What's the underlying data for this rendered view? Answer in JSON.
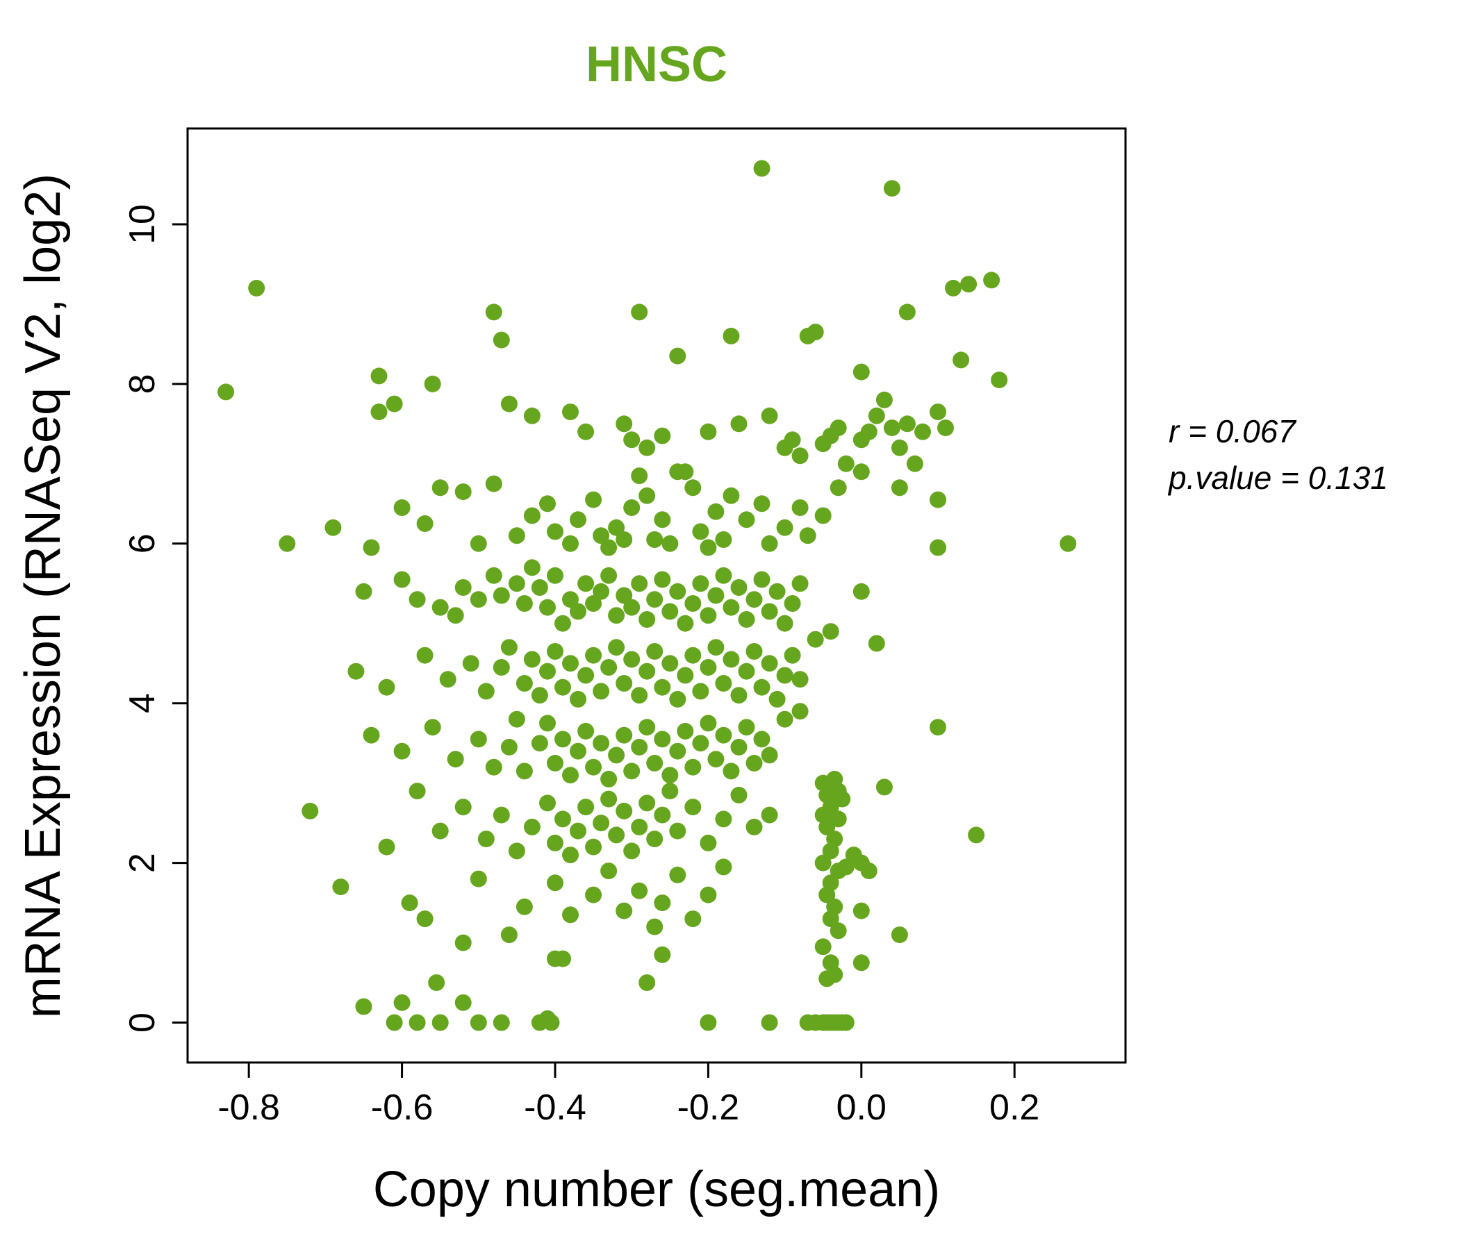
{
  "page": {
    "background_color": "#ffffff"
  },
  "annotation": {
    "line1": "r = 0.067",
    "line2": "p.value = 0.131"
  },
  "chart_data": {
    "type": "scatter",
    "title": "HNSC",
    "title_color": "#66a61e",
    "point_color": "#66a61e",
    "xlabel": "Copy number (seg.mean)",
    "ylabel": "mRNA Expression (RNASeq V2, log2)",
    "xlim": [
      -0.88,
      0.345
    ],
    "ylim": [
      -0.5,
      11.2
    ],
    "xticks": [
      -0.8,
      -0.6,
      -0.4,
      -0.2,
      0.0,
      0.2
    ],
    "xtick_labels": [
      "-0.8",
      "-0.6",
      "-0.4",
      "-0.2",
      "0.0",
      "0.2"
    ],
    "yticks": [
      0,
      2,
      4,
      6,
      8,
      10
    ],
    "ytick_labels": [
      "0",
      "2",
      "4",
      "6",
      "8",
      "10"
    ],
    "legend": null,
    "grid": false,
    "stats": {
      "r": 0.067,
      "p_value": 0.131
    },
    "points": [
      [
        -0.13,
        10.7
      ],
      [
        0.04,
        10.45
      ],
      [
        -0.79,
        9.2
      ],
      [
        0.14,
        9.25
      ],
      [
        0.17,
        9.3
      ],
      [
        0.12,
        9.2
      ],
      [
        0.06,
        8.9
      ],
      [
        -0.48,
        8.9
      ],
      [
        -0.47,
        8.55
      ],
      [
        -0.29,
        8.9
      ],
      [
        -0.24,
        8.35
      ],
      [
        -0.17,
        8.6
      ],
      [
        -0.07,
        8.6
      ],
      [
        -0.06,
        8.65
      ],
      [
        0.0,
        8.15
      ],
      [
        0.13,
        8.3
      ],
      [
        0.18,
        8.05
      ],
      [
        -0.63,
        8.1
      ],
      [
        -0.83,
        7.9
      ],
      [
        -0.63,
        7.65
      ],
      [
        -0.61,
        7.75
      ],
      [
        -0.56,
        8.0
      ],
      [
        -0.46,
        7.75
      ],
      [
        -0.43,
        7.6
      ],
      [
        -0.38,
        7.65
      ],
      [
        -0.36,
        7.4
      ],
      [
        -0.31,
        7.5
      ],
      [
        -0.3,
        7.3
      ],
      [
        -0.28,
        7.2
      ],
      [
        -0.26,
        7.35
      ],
      [
        -0.24,
        6.9
      ],
      [
        -0.2,
        7.4
      ],
      [
        -0.16,
        7.5
      ],
      [
        -0.12,
        7.6
      ],
      [
        -0.1,
        7.2
      ],
      [
        -0.09,
        7.3
      ],
      [
        -0.08,
        7.1
      ],
      [
        -0.05,
        7.25
      ],
      [
        -0.04,
        7.35
      ],
      [
        -0.03,
        7.45
      ],
      [
        -0.02,
        7.0
      ],
      [
        0.0,
        7.3
      ],
      [
        0.01,
        7.4
      ],
      [
        0.02,
        7.6
      ],
      [
        0.03,
        7.8
      ],
      [
        0.04,
        7.45
      ],
      [
        0.05,
        7.2
      ],
      [
        0.06,
        7.5
      ],
      [
        0.07,
        7.0
      ],
      [
        0.08,
        7.4
      ],
      [
        0.1,
        7.65
      ],
      [
        0.11,
        7.45
      ],
      [
        0.05,
        6.7
      ],
      [
        0.1,
        6.55
      ],
      [
        -0.69,
        6.2
      ],
      [
        -0.75,
        6.0
      ],
      [
        -0.64,
        5.95
      ],
      [
        -0.6,
        6.45
      ],
      [
        -0.57,
        6.25
      ],
      [
        -0.55,
        6.7
      ],
      [
        -0.52,
        6.65
      ],
      [
        -0.5,
        6.0
      ],
      [
        -0.48,
        6.75
      ],
      [
        -0.45,
        6.1
      ],
      [
        -0.43,
        6.35
      ],
      [
        -0.41,
        6.5
      ],
      [
        -0.4,
        6.15
      ],
      [
        -0.38,
        6.0
      ],
      [
        -0.37,
        6.3
      ],
      [
        -0.35,
        6.55
      ],
      [
        -0.34,
        6.1
      ],
      [
        -0.33,
        5.95
      ],
      [
        -0.32,
        6.2
      ],
      [
        -0.31,
        6.05
      ],
      [
        -0.3,
        6.45
      ],
      [
        -0.29,
        6.85
      ],
      [
        -0.28,
        6.6
      ],
      [
        -0.27,
        6.05
      ],
      [
        -0.26,
        6.3
      ],
      [
        -0.25,
        6.0
      ],
      [
        -0.23,
        6.9
      ],
      [
        -0.22,
        6.7
      ],
      [
        -0.21,
        6.15
      ],
      [
        -0.2,
        5.95
      ],
      [
        -0.19,
        6.4
      ],
      [
        -0.18,
        6.05
      ],
      [
        -0.17,
        6.6
      ],
      [
        -0.15,
        6.3
      ],
      [
        -0.13,
        6.5
      ],
      [
        -0.12,
        6.0
      ],
      [
        -0.1,
        6.2
      ],
      [
        -0.08,
        6.45
      ],
      [
        -0.07,
        6.1
      ],
      [
        -0.05,
        6.35
      ],
      [
        -0.03,
        6.7
      ],
      [
        0.0,
        6.9
      ],
      [
        0.27,
        6.0
      ],
      [
        0.1,
        5.95
      ],
      [
        -0.65,
        5.4
      ],
      [
        -0.6,
        5.55
      ],
      [
        -0.58,
        5.3
      ],
      [
        -0.55,
        5.2
      ],
      [
        -0.53,
        5.1
      ],
      [
        -0.52,
        5.45
      ],
      [
        -0.5,
        5.3
      ],
      [
        -0.48,
        5.6
      ],
      [
        -0.47,
        5.35
      ],
      [
        -0.45,
        5.5
      ],
      [
        -0.44,
        5.25
      ],
      [
        -0.43,
        5.7
      ],
      [
        -0.42,
        5.45
      ],
      [
        -0.41,
        5.2
      ],
      [
        -0.4,
        5.6
      ],
      [
        -0.39,
        5.0
      ],
      [
        -0.38,
        5.3
      ],
      [
        -0.37,
        5.15
      ],
      [
        -0.36,
        5.5
      ],
      [
        -0.35,
        5.25
      ],
      [
        -0.34,
        5.4
      ],
      [
        -0.33,
        5.6
      ],
      [
        -0.32,
        5.1
      ],
      [
        -0.31,
        5.35
      ],
      [
        -0.3,
        5.2
      ],
      [
        -0.29,
        5.5
      ],
      [
        -0.28,
        5.05
      ],
      [
        -0.27,
        5.3
      ],
      [
        -0.26,
        5.55
      ],
      [
        -0.25,
        5.15
      ],
      [
        -0.24,
        5.4
      ],
      [
        -0.23,
        5.0
      ],
      [
        -0.22,
        5.25
      ],
      [
        -0.21,
        5.5
      ],
      [
        -0.2,
        5.1
      ],
      [
        -0.19,
        5.35
      ],
      [
        -0.18,
        5.6
      ],
      [
        -0.17,
        5.2
      ],
      [
        -0.16,
        5.45
      ],
      [
        -0.15,
        5.05
      ],
      [
        -0.14,
        5.3
      ],
      [
        -0.13,
        5.55
      ],
      [
        -0.12,
        5.15
      ],
      [
        -0.11,
        5.4
      ],
      [
        -0.1,
        5.0
      ],
      [
        -0.09,
        5.25
      ],
      [
        -0.08,
        5.5
      ],
      [
        -0.66,
        4.4
      ],
      [
        -0.62,
        4.2
      ],
      [
        -0.57,
        4.6
      ],
      [
        -0.54,
        4.3
      ],
      [
        -0.51,
        4.5
      ],
      [
        -0.49,
        4.15
      ],
      [
        -0.47,
        4.45
      ],
      [
        -0.46,
        4.7
      ],
      [
        -0.44,
        4.25
      ],
      [
        -0.43,
        4.55
      ],
      [
        -0.42,
        4.1
      ],
      [
        -0.41,
        4.4
      ],
      [
        -0.4,
        4.65
      ],
      [
        -0.39,
        4.2
      ],
      [
        -0.38,
        4.5
      ],
      [
        -0.37,
        4.05
      ],
      [
        -0.36,
        4.35
      ],
      [
        -0.35,
        4.6
      ],
      [
        -0.34,
        4.15
      ],
      [
        -0.33,
        4.45
      ],
      [
        -0.32,
        4.7
      ],
      [
        -0.31,
        4.25
      ],
      [
        -0.3,
        4.55
      ],
      [
        -0.29,
        4.1
      ],
      [
        -0.28,
        4.4
      ],
      [
        -0.27,
        4.65
      ],
      [
        -0.26,
        4.2
      ],
      [
        -0.25,
        4.5
      ],
      [
        -0.24,
        4.05
      ],
      [
        -0.23,
        4.35
      ],
      [
        -0.22,
        4.6
      ],
      [
        -0.21,
        4.15
      ],
      [
        -0.2,
        4.45
      ],
      [
        -0.19,
        4.7
      ],
      [
        -0.18,
        4.25
      ],
      [
        -0.17,
        4.55
      ],
      [
        -0.16,
        4.1
      ],
      [
        -0.15,
        4.4
      ],
      [
        -0.14,
        4.65
      ],
      [
        -0.13,
        4.2
      ],
      [
        -0.12,
        4.5
      ],
      [
        -0.11,
        4.05
      ],
      [
        -0.1,
        4.35
      ],
      [
        -0.09,
        4.6
      ],
      [
        -0.08,
        4.3
      ],
      [
        -0.06,
        4.8
      ],
      [
        -0.04,
        4.9
      ],
      [
        -0.64,
        3.6
      ],
      [
        -0.6,
        3.4
      ],
      [
        -0.56,
        3.7
      ],
      [
        -0.53,
        3.3
      ],
      [
        -0.5,
        3.55
      ],
      [
        -0.48,
        3.2
      ],
      [
        -0.46,
        3.45
      ],
      [
        -0.45,
        3.8
      ],
      [
        -0.44,
        3.15
      ],
      [
        -0.42,
        3.5
      ],
      [
        -0.41,
        3.75
      ],
      [
        -0.4,
        3.25
      ],
      [
        -0.39,
        3.55
      ],
      [
        -0.38,
        3.1
      ],
      [
        -0.37,
        3.4
      ],
      [
        -0.36,
        3.65
      ],
      [
        -0.35,
        3.2
      ],
      [
        -0.34,
        3.5
      ],
      [
        -0.33,
        3.05
      ],
      [
        -0.32,
        3.35
      ],
      [
        -0.31,
        3.6
      ],
      [
        -0.3,
        3.15
      ],
      [
        -0.29,
        3.45
      ],
      [
        -0.28,
        3.7
      ],
      [
        -0.27,
        3.25
      ],
      [
        -0.26,
        3.55
      ],
      [
        -0.25,
        3.1
      ],
      [
        -0.24,
        3.4
      ],
      [
        -0.23,
        3.65
      ],
      [
        -0.22,
        3.2
      ],
      [
        -0.21,
        3.5
      ],
      [
        -0.2,
        3.75
      ],
      [
        -0.19,
        3.3
      ],
      [
        -0.18,
        3.6
      ],
      [
        -0.17,
        3.15
      ],
      [
        -0.16,
        3.45
      ],
      [
        -0.15,
        3.7
      ],
      [
        -0.14,
        3.25
      ],
      [
        -0.13,
        3.55
      ],
      [
        -0.12,
        3.35
      ],
      [
        -0.1,
        3.8
      ],
      [
        -0.08,
        3.9
      ],
      [
        0.1,
        3.7
      ],
      [
        -0.72,
        2.65
      ],
      [
        -0.62,
        2.2
      ],
      [
        -0.58,
        2.9
      ],
      [
        -0.55,
        2.4
      ],
      [
        -0.52,
        2.7
      ],
      [
        -0.49,
        2.3
      ],
      [
        -0.47,
        2.6
      ],
      [
        -0.45,
        2.15
      ],
      [
        -0.43,
        2.45
      ],
      [
        -0.41,
        2.75
      ],
      [
        -0.4,
        2.25
      ],
      [
        -0.39,
        2.55
      ],
      [
        -0.38,
        2.1
      ],
      [
        -0.37,
        2.4
      ],
      [
        -0.36,
        2.7
      ],
      [
        -0.35,
        2.2
      ],
      [
        -0.34,
        2.5
      ],
      [
        -0.33,
        2.8
      ],
      [
        -0.32,
        2.35
      ],
      [
        -0.31,
        2.65
      ],
      [
        -0.3,
        2.15
      ],
      [
        -0.29,
        2.45
      ],
      [
        -0.28,
        2.75
      ],
      [
        -0.27,
        2.3
      ],
      [
        -0.26,
        2.6
      ],
      [
        -0.25,
        2.9
      ],
      [
        -0.24,
        2.4
      ],
      [
        -0.22,
        2.7
      ],
      [
        -0.2,
        2.25
      ],
      [
        -0.18,
        2.55
      ],
      [
        -0.16,
        2.85
      ],
      [
        -0.14,
        2.45
      ],
      [
        -0.12,
        2.6
      ],
      [
        0.15,
        2.35
      ],
      [
        -0.68,
        1.7
      ],
      [
        -0.59,
        1.5
      ],
      [
        -0.57,
        1.3
      ],
      [
        -0.5,
        1.8
      ],
      [
        -0.46,
        1.1
      ],
      [
        -0.44,
        1.45
      ],
      [
        -0.4,
        1.75
      ],
      [
        -0.38,
        1.35
      ],
      [
        -0.35,
        1.6
      ],
      [
        -0.33,
        1.9
      ],
      [
        -0.31,
        1.4
      ],
      [
        -0.29,
        1.65
      ],
      [
        -0.27,
        1.2
      ],
      [
        -0.26,
        1.5
      ],
      [
        -0.24,
        1.85
      ],
      [
        -0.22,
        1.3
      ],
      [
        -0.2,
        1.6
      ],
      [
        -0.18,
        1.95
      ],
      [
        -0.26,
        0.85
      ],
      [
        -0.4,
        0.8
      ],
      [
        -0.52,
        1.0
      ],
      [
        0.05,
        1.1
      ],
      [
        -0.05,
        3.0
      ],
      [
        -0.045,
        2.85
      ],
      [
        -0.04,
        2.95
      ],
      [
        -0.035,
        3.05
      ],
      [
        -0.03,
        2.9
      ],
      [
        -0.025,
        2.8
      ],
      [
        -0.04,
        2.7
      ],
      [
        -0.05,
        2.6
      ],
      [
        -0.03,
        2.55
      ],
      [
        -0.045,
        2.45
      ],
      [
        -0.035,
        2.3
      ],
      [
        -0.04,
        2.15
      ],
      [
        -0.05,
        2.0
      ],
      [
        -0.03,
        1.9
      ],
      [
        -0.04,
        1.75
      ],
      [
        -0.045,
        1.6
      ],
      [
        -0.035,
        1.45
      ],
      [
        -0.04,
        1.3
      ],
      [
        -0.03,
        1.15
      ],
      [
        -0.05,
        0.95
      ],
      [
        -0.04,
        0.75
      ],
      [
        -0.035,
        0.6
      ],
      [
        -0.045,
        0.55
      ],
      [
        -0.02,
        1.95
      ],
      [
        -0.01,
        2.1
      ],
      [
        -0.65,
        0.2
      ],
      [
        -0.61,
        0.0
      ],
      [
        -0.6,
        0.25
      ],
      [
        -0.58,
        0.0
      ],
      [
        -0.555,
        0.5
      ],
      [
        -0.55,
        0.0
      ],
      [
        -0.52,
        0.25
      ],
      [
        -0.5,
        0.0
      ],
      [
        -0.47,
        0.0
      ],
      [
        -0.42,
        0.0
      ],
      [
        -0.41,
        0.05
      ],
      [
        -0.405,
        0.0
      ],
      [
        -0.39,
        0.8
      ],
      [
        -0.28,
        0.5
      ],
      [
        -0.2,
        0.0
      ],
      [
        -0.12,
        0.0
      ],
      [
        -0.07,
        0.0
      ],
      [
        -0.06,
        0.0
      ],
      [
        -0.05,
        0.0
      ],
      [
        -0.045,
        0.0
      ],
      [
        -0.04,
        0.0
      ],
      [
        -0.035,
        0.0
      ],
      [
        -0.03,
        0.0
      ],
      [
        -0.025,
        0.0
      ],
      [
        -0.02,
        0.0
      ],
      [
        0.0,
        5.4
      ],
      [
        0.02,
        4.75
      ],
      [
        0.03,
        2.95
      ],
      [
        0.0,
        2.0
      ],
      [
        0.01,
        1.9
      ],
      [
        0.0,
        1.4
      ],
      [
        0.0,
        0.75
      ]
    ]
  }
}
